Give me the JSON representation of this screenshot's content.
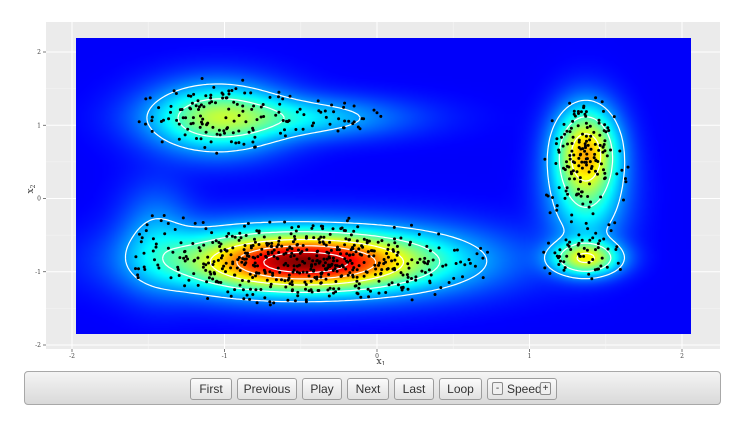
{
  "chart_data": {
    "type": "heatmap",
    "title": "",
    "xlabel": "x",
    "xlabel_sub": "1",
    "ylabel": "x",
    "ylabel_sub": "2",
    "xlim": [
      -2,
      2
    ],
    "ylim": [
      -2,
      2
    ],
    "x_ticks": [
      -2,
      -1,
      0,
      1,
      2
    ],
    "y_ticks": [
      -2,
      -1,
      0,
      1,
      2
    ],
    "x_tick_labels": [
      "-2",
      "-1",
      "0",
      "1",
      "2"
    ],
    "y_tick_labels": [
      "-2",
      "-1",
      "0",
      "1",
      "2"
    ],
    "grid": true,
    "colormap": "jet",
    "overlays": [
      "scatter points (black)",
      "density contour lines (white)"
    ],
    "density_components": [
      {
        "center": [
          -1.05,
          1.1
        ],
        "sd": [
          0.28,
          0.3
        ],
        "weight": 0.5
      },
      {
        "center": [
          -0.55,
          1.1
        ],
        "sd": [
          0.45,
          0.18
        ],
        "weight": 0.25
      },
      {
        "center": [
          -0.45,
          -0.88
        ],
        "sd": [
          0.4,
          0.22
        ],
        "weight": 1.0
      },
      {
        "center": [
          -0.85,
          -0.85
        ],
        "sd": [
          0.45,
          0.3
        ],
        "weight": 0.45
      },
      {
        "center": [
          0.0,
          -0.85
        ],
        "sd": [
          0.5,
          0.3
        ],
        "weight": 0.4
      },
      {
        "center": [
          -1.45,
          -0.55
        ],
        "sd": [
          0.15,
          0.45
        ],
        "weight": 0.15
      },
      {
        "center": [
          1.37,
          0.65
        ],
        "sd": [
          0.13,
          0.38
        ],
        "weight": 0.8
      },
      {
        "center": [
          1.37,
          -0.82
        ],
        "sd": [
          0.14,
          0.15
        ],
        "weight": 0.7
      },
      {
        "center": [
          1.37,
          0.0
        ],
        "sd": [
          0.16,
          0.45
        ],
        "weight": 0.3
      }
    ],
    "contour_levels": [
      0.1,
      0.25,
      0.45,
      0.65,
      0.85
    ]
  },
  "controls": {
    "buttons": [
      "First",
      "Previous",
      "Play",
      "Next",
      "Last",
      "Loop"
    ],
    "speed_label": "Speed",
    "speed_minus": "-",
    "speed_plus": "+"
  },
  "colors": {
    "panel_background": "#ebebeb",
    "grid_line": "#ffffff",
    "point": "#000000",
    "contour": "#ffffff"
  }
}
